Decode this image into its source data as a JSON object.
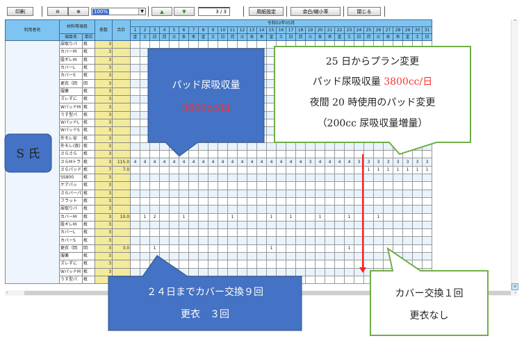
{
  "toolbar": {
    "print_label": "印刷",
    "zoom_out_icon": "zoom-out-icon",
    "zoom_in_icon": "zoom-in-icon",
    "zoom_value": "100%",
    "prev_page_icon": "arrow-up-icon",
    "next_page_icon": "arrow-down-icon",
    "page_indicator": "3 / 3",
    "paper_setup_label": "用紙設定",
    "margin_scale_label": "余白/縮小率",
    "close_label": "閉じる"
  },
  "table": {
    "header": {
      "user_name": "利用者名",
      "material_items": "材料等項目",
      "item_name": "項目名",
      "unit": "単位",
      "coefficient": "係数",
      "total": "合計",
      "month": "令和02年05月",
      "days": [
        "1",
        "2",
        "3",
        "4",
        "5",
        "6",
        "7",
        "8",
        "9",
        "10",
        "11",
        "12",
        "13",
        "14",
        "15",
        "16",
        "17",
        "18",
        "19",
        "20",
        "21",
        "22",
        "23",
        "24",
        "25",
        "26",
        "27",
        "28",
        "29",
        "30",
        "31"
      ],
      "weekdays": [
        "金",
        "土",
        "日",
        "月",
        "火",
        "水",
        "木",
        "金",
        "土",
        "日",
        "月",
        "火",
        "水",
        "木",
        "金",
        "土",
        "日",
        "月",
        "火",
        "水",
        "木",
        "金",
        "土",
        "日",
        "月",
        "火",
        "水",
        "木",
        "金",
        "土",
        "日"
      ]
    },
    "rows": [
      {
        "name": "尿取りパ",
        "unit": "枚",
        "coef": "3",
        "total": "",
        "values": {}
      },
      {
        "name": "カバーM",
        "unit": "枚",
        "coef": "3",
        "total": "",
        "values": {}
      },
      {
        "name": "股ギレM",
        "unit": "枚",
        "coef": "3",
        "total": "",
        "values": {}
      },
      {
        "name": "カバーL",
        "unit": "枚",
        "coef": "3",
        "total": "",
        "values": {}
      },
      {
        "name": "カバーS",
        "unit": "枚",
        "coef": "3",
        "total": "",
        "values": {}
      },
      {
        "name": "更衣（回",
        "unit": "回",
        "coef": "3",
        "total": "",
        "values": {}
      },
      {
        "name": "服薬",
        "unit": "枚",
        "coef": "3",
        "total": "",
        "values": {}
      },
      {
        "name": "ズレずに",
        "unit": "枚",
        "coef": "3",
        "total": "",
        "values": {}
      },
      {
        "name": "WパッドM",
        "unit": "枚",
        "coef": "3",
        "total": "",
        "values": {}
      },
      {
        "name": "うす型パ",
        "unit": "枚",
        "coef": "3",
        "total": "",
        "values": {}
      },
      {
        "name": "WパッドL",
        "unit": "枚",
        "coef": "3",
        "total": "",
        "values": {}
      },
      {
        "name": "WパッドS",
        "unit": "枚",
        "coef": "3",
        "total": "",
        "values": {}
      },
      {
        "name": "外モレ安",
        "unit": "枚",
        "coef": "3",
        "total": "",
        "values": {}
      },
      {
        "name": "外モレ(夜)",
        "unit": "枚",
        "coef": "3",
        "total": "",
        "values": {}
      },
      {
        "name": "さらさら",
        "unit": "枚",
        "coef": "3",
        "total": "",
        "values": {}
      },
      {
        "name": "さらMトラ",
        "unit": "枚",
        "coef": "3",
        "total": "115.0",
        "values": {
          "1": "4",
          "2": "4",
          "3": "4",
          "4": "4",
          "5": "4",
          "6": "4",
          "7": "4",
          "8": "4",
          "9": "4",
          "10": "4",
          "11": "4",
          "12": "4",
          "13": "4",
          "14": "4",
          "15": "4",
          "16": "4",
          "17": "4",
          "18": "4",
          "19": "3",
          "20": "4",
          "21": "4",
          "22": "4",
          "23": "4",
          "24": "3",
          "25": "3",
          "26": "3",
          "27": "3",
          "28": "3",
          "29": "3",
          "30": "3",
          "31": "3"
        }
      },
      {
        "name": "さらパッド",
        "unit": "枚",
        "coef": "7",
        "total": "7.0",
        "values": {
          "25": "1",
          "26": "1",
          "27": "1",
          "28": "1",
          "29": "1",
          "30": "1",
          "31": "1"
        }
      },
      {
        "name": "SS800",
        "unit": "枚",
        "coef": "3",
        "total": "",
        "values": {}
      },
      {
        "name": "ケアパッ",
        "unit": "枚",
        "coef": "3",
        "total": "",
        "values": {}
      },
      {
        "name": "さらバーパ",
        "unit": "枚",
        "coef": "3",
        "total": "",
        "values": {}
      },
      {
        "name": "フラット",
        "unit": "枚",
        "coef": "3",
        "total": "",
        "values": {}
      },
      {
        "name": "尿取りパ",
        "unit": "枚",
        "coef": "3",
        "total": "",
        "values": {}
      },
      {
        "name": "カバーM",
        "unit": "枚",
        "coef": "3",
        "total": "10.0",
        "values": {
          "2": "1",
          "3": "2",
          "6": "1",
          "11": "1",
          "15": "1",
          "17": "1",
          "20": "1",
          "23": "1",
          "26": "1"
        }
      },
      {
        "name": "股ギレM",
        "unit": "枚",
        "coef": "3",
        "total": "",
        "values": {}
      },
      {
        "name": "カバーL",
        "unit": "枚",
        "coef": "3",
        "total": "",
        "values": {}
      },
      {
        "name": "カバーS",
        "unit": "枚",
        "coef": "3",
        "total": "",
        "values": {}
      },
      {
        "name": "更衣（回",
        "unit": "回",
        "coef": "3",
        "total": "3.0",
        "values": {
          "3": "1",
          "15": "1",
          "23": "1"
        }
      },
      {
        "name": "服薬",
        "unit": "枚",
        "coef": "3",
        "total": "",
        "values": {}
      },
      {
        "name": "ズレずに",
        "unit": "枚",
        "coef": "3",
        "total": "",
        "values": {}
      },
      {
        "name": "WパッドM",
        "unit": "枚",
        "coef": "3",
        "total": "",
        "values": {}
      },
      {
        "name": "うす型パ",
        "unit": "枚",
        "coef": "3",
        "total": "",
        "values": {}
      }
    ]
  },
  "callouts": {
    "user_label": "S 氏",
    "pad_absorption_line1": "パッド尿吸収量",
    "pad_absorption_line2": "3600cc/日",
    "plan_change": {
      "line1": "25 日からプラン変更",
      "line2_prefix": "パッド尿吸収量 ",
      "line2_value": "3800cc/日",
      "line3": "夜間 20 時使用のパッド変更",
      "line4": "（200cc 尿吸収量増量）"
    },
    "before_24": {
      "line1": "２４日までカバー交換９回",
      "line2": "更衣　３回"
    },
    "after_25": {
      "line1": "カバー交換１回",
      "line2": "更衣なし"
    }
  },
  "colors": {
    "callout_blue": "#4472c4",
    "callout_green_border": "#70ad47",
    "highlight_red": "#ff3030",
    "header_blue": "#7fc4f0",
    "coef_yellow": "#f3eb9c"
  }
}
